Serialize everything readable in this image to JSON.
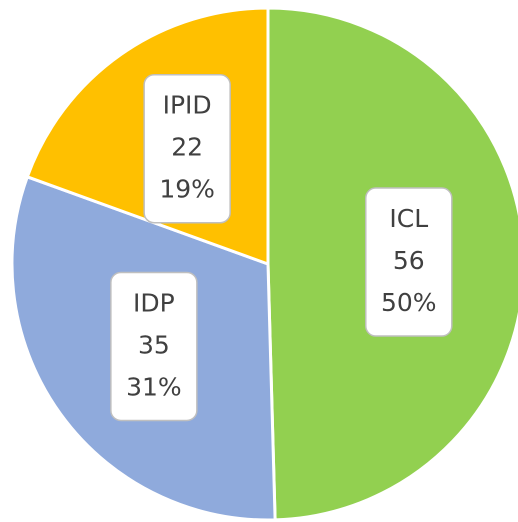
{
  "chart_data": {
    "type": "pie",
    "categories": [
      "ICL",
      "IDP",
      "IPID"
    ],
    "values": [
      56,
      35,
      22
    ],
    "percent_labels": [
      "50%",
      "31%",
      "19%"
    ],
    "colors": [
      "#92d050",
      "#8faadc",
      "#ffc000"
    ]
  }
}
